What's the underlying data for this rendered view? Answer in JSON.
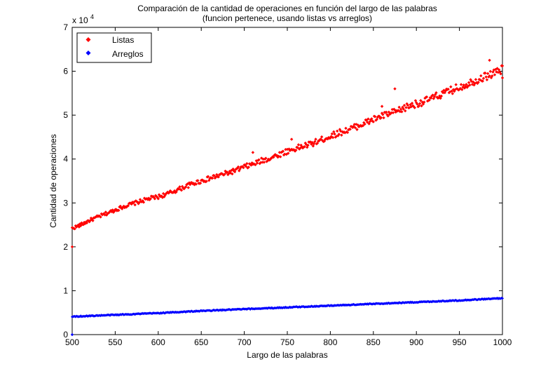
{
  "chart_data": {
    "type": "scatter",
    "title": "Comparación de la cantidad de operaciones en función del largo de las palabras",
    "subtitle": "(funcion pertenece, usando listas vs arreglos)",
    "xlabel": "Largo de las palabras",
    "ylabel": "Cantidad de operaciones",
    "y_multiplier_label": "x 10",
    "y_multiplier_exponent": "4",
    "xlim": [
      500,
      1000
    ],
    "ylim": [
      0,
      7
    ],
    "xticks": [
      "500",
      "550",
      "600",
      "650",
      "700",
      "750",
      "800",
      "850",
      "900",
      "950",
      "1000"
    ],
    "yticks": [
      "0",
      "1",
      "2",
      "3",
      "4",
      "5",
      "6",
      "7"
    ],
    "grid": false,
    "legend_position": "top-left",
    "series": [
      {
        "name": "Listas",
        "color": "#ff0000",
        "marker": "diamond",
        "x": [
          500,
          510,
          520,
          530,
          540,
          550,
          560,
          570,
          580,
          590,
          600,
          610,
          620,
          630,
          640,
          650,
          660,
          670,
          680,
          690,
          700,
          710,
          720,
          730,
          740,
          750,
          760,
          770,
          780,
          790,
          800,
          810,
          820,
          830,
          840,
          850,
          860,
          870,
          880,
          890,
          900,
          910,
          920,
          930,
          940,
          950,
          960,
          970,
          980,
          990,
          1000
        ],
        "values": [
          2.42,
          2.5,
          2.6,
          2.68,
          2.76,
          2.84,
          2.92,
          2.98,
          3.04,
          3.1,
          3.14,
          3.2,
          3.28,
          3.36,
          3.44,
          3.5,
          3.56,
          3.62,
          3.68,
          3.74,
          3.82,
          3.88,
          3.96,
          4.02,
          4.1,
          4.18,
          4.24,
          4.3,
          4.36,
          4.44,
          4.52,
          4.6,
          4.66,
          4.74,
          4.82,
          4.9,
          4.98,
          5.04,
          5.1,
          5.2,
          5.26,
          5.32,
          5.4,
          5.48,
          5.56,
          5.64,
          5.72,
          5.8,
          5.88,
          5.96,
          6.04
        ],
        "outliers": [
          [
            500,
            2.0
          ],
          [
            710,
            4.15
          ],
          [
            755,
            4.45
          ],
          [
            860,
            5.2
          ],
          [
            875,
            5.6
          ],
          [
            985,
            6.25
          ],
          [
            1000,
            5.85
          ]
        ]
      },
      {
        "name": "Arreglos",
        "color": "#0000ff",
        "marker": "diamond",
        "x": [
          500,
          550,
          600,
          650,
          700,
          750,
          800,
          850,
          900,
          950,
          1000
        ],
        "values": [
          0.41,
          0.45,
          0.49,
          0.54,
          0.58,
          0.62,
          0.66,
          0.7,
          0.74,
          0.78,
          0.83
        ],
        "outliers": [
          [
            500,
            0.0
          ]
        ]
      }
    ]
  }
}
